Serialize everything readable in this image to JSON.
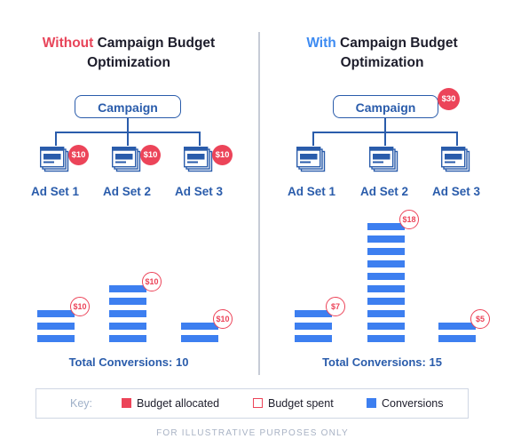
{
  "left": {
    "title_highlight": "Without",
    "title_rest": " Campaign Budget",
    "title_line2": "Optimization",
    "campaign_label": "Campaign",
    "ad_sets": [
      {
        "label": "Ad Set 1",
        "allocated": "$10",
        "spent": "$10",
        "conversions": 3
      },
      {
        "label": "Ad Set 2",
        "allocated": "$10",
        "spent": "$10",
        "conversions": 5
      },
      {
        "label": "Ad Set 3",
        "allocated": "$10",
        "spent": "$10",
        "conversions": 2
      }
    ],
    "total": "Total Conversions: 10"
  },
  "right": {
    "title_highlight": "With",
    "title_rest": " Campaign Budget",
    "title_line2": "Optimization",
    "campaign_label": "Campaign",
    "campaign_budget": "$30",
    "ad_sets": [
      {
        "label": "Ad Set 1",
        "spent": "$7",
        "conversions": 3
      },
      {
        "label": "Ad Set 2",
        "spent": "$18",
        "conversions": 10
      },
      {
        "label": "Ad Set 3",
        "spent": "$5",
        "conversions": 2
      }
    ],
    "total": "Total Conversions: 15"
  },
  "key": {
    "title": "Key:",
    "budget_allocated": "Budget allocated",
    "budget_spent": "Budget spent",
    "conversions": "Conversions"
  },
  "footer": "FOR ILLUSTRATIVE PURPOSES ONLY",
  "colors": {
    "red": "#ec4459",
    "blue": "#3d7ff0",
    "navy": "#2a5cab"
  }
}
